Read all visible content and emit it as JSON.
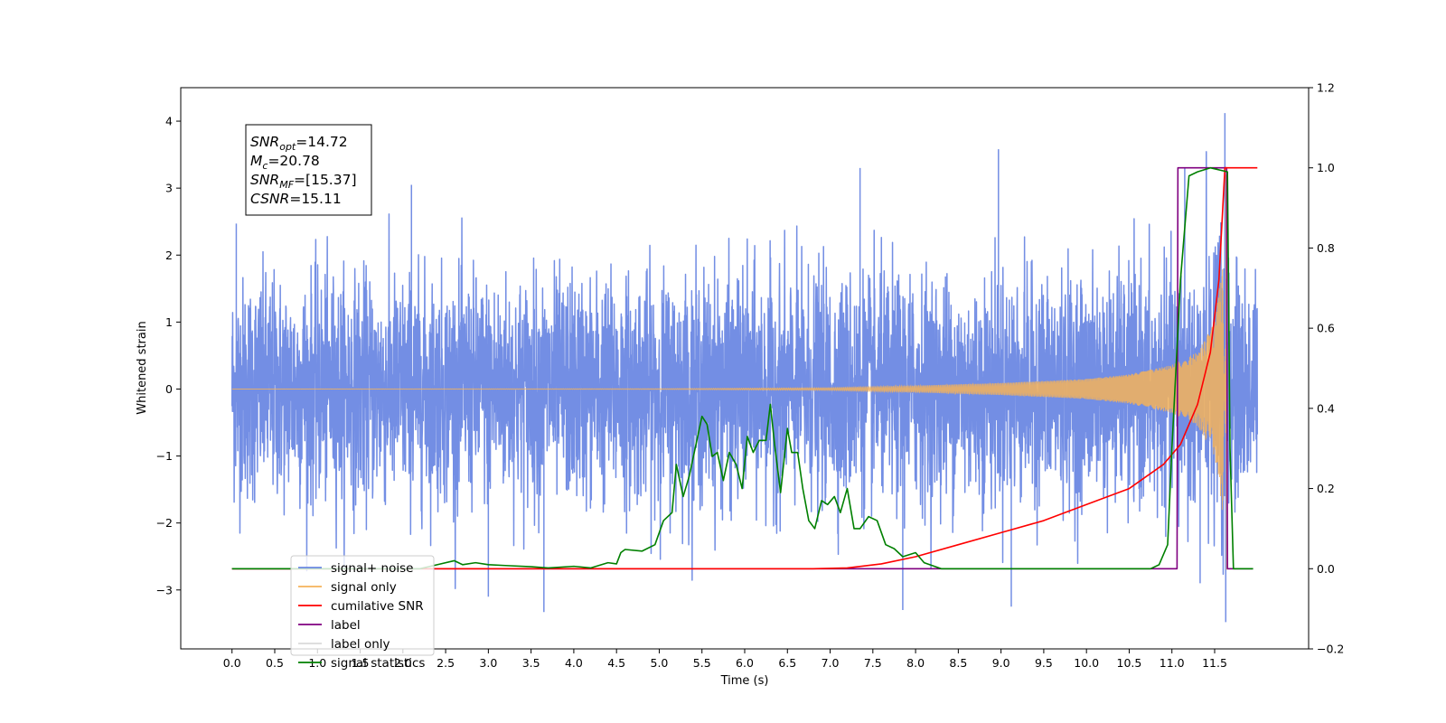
{
  "chart_data": {
    "type": "line",
    "title": "",
    "xlabel": "Time (s)",
    "ylabel": "Whitened strain",
    "xlim": [
      -0.6,
      12.6
    ],
    "ylim": [
      -3.88,
      4.5
    ],
    "y2lim": [
      -0.2,
      1.2
    ],
    "x_ticks": [
      "0.0",
      "0.5",
      "1.0",
      "1.5",
      "2.0",
      "2.5",
      "3.0",
      "3.5",
      "4.0",
      "4.5",
      "5.0",
      "5.5",
      "6.0",
      "6.5",
      "7.0",
      "7.5",
      "8.0",
      "8.5",
      "9.0",
      "9.5",
      "10.0",
      "10.5",
      "11.0",
      "11.5"
    ],
    "y_ticks": [
      "−3",
      "−2",
      "−1",
      "0",
      "1",
      "2",
      "3",
      "4"
    ],
    "y2_ticks": [
      "−0.2",
      "0.0",
      "0.2",
      "0.4",
      "0.6",
      "0.8",
      "1.0",
      "1.2"
    ],
    "grid": false,
    "legend_position": "lower-left",
    "annotation": {
      "lines": [
        {
          "sym": "SNR",
          "sub": "opt",
          "value": "=14.72"
        },
        {
          "sym": "M",
          "sub": "c",
          "value": "=20.78"
        },
        {
          "sym": "SNR",
          "sub": "MF",
          "value": "=[15.37]"
        },
        {
          "sym": "CSNR",
          "sub": "",
          "value": "=15.11"
        }
      ]
    },
    "series": [
      {
        "name": "signal+ noise",
        "axis": "left",
        "color": "#6b88e3",
        "x_range": [
          0.0,
          12.0
        ],
        "envelope": {
          "std": 0.82,
          "typical_peak": 2.5,
          "max": 4.12,
          "min": -3.48
        },
        "notable_peaks": [
          [
            0.05,
            2.47
          ],
          [
            2.1,
            3.05
          ],
          [
            3.0,
            -3.1
          ],
          [
            3.65,
            -3.33
          ],
          [
            7.35,
            3.3
          ],
          [
            7.85,
            -3.3
          ],
          [
            8.97,
            3.58
          ],
          [
            9.12,
            -3.25
          ],
          [
            11.15,
            3.3
          ],
          [
            11.33,
            -2.9
          ],
          [
            11.62,
            4.12
          ],
          [
            11.63,
            -3.48
          ]
        ]
      },
      {
        "name": "signal only",
        "axis": "left",
        "color": "#f5b35a",
        "x": [
          0.0,
          5.0,
          7.0,
          8.0,
          9.0,
          10.0,
          10.5,
          11.0,
          11.3,
          11.5,
          11.6,
          11.65
        ],
        "amplitude": [
          0.0,
          0.005,
          0.02,
          0.05,
          0.09,
          0.15,
          0.22,
          0.36,
          0.55,
          1.0,
          1.9,
          0.0
        ],
        "final_spike": [
          11.63,
          3.2,
          -2.7
        ]
      },
      {
        "name": "cumilative SNR",
        "axis": "right",
        "color": "#ff0000",
        "x": [
          0.0,
          6.8,
          7.2,
          7.6,
          8.0,
          8.5,
          9.0,
          9.5,
          10.0,
          10.5,
          10.9,
          11.1,
          11.3,
          11.45,
          11.55,
          11.62,
          11.65,
          12.0
        ],
        "values": [
          0.0,
          0.0,
          0.002,
          0.012,
          0.03,
          0.06,
          0.09,
          0.12,
          0.16,
          0.2,
          0.26,
          0.31,
          0.41,
          0.54,
          0.72,
          1.0,
          1.0,
          1.0
        ]
      },
      {
        "name": "label",
        "axis": "right",
        "color": "#800080",
        "x": [
          0.0,
          11.06,
          11.07,
          11.64,
          11.65,
          11.95
        ],
        "values": [
          0.0,
          0.0,
          1.0,
          1.0,
          0.0,
          0.0
        ]
      },
      {
        "name": "label only",
        "axis": "right",
        "color": "#d9d9d9",
        "x": [],
        "values": []
      },
      {
        "name": "signal statistics",
        "axis": "right",
        "color": "#008000",
        "x": [
          0.0,
          2.2,
          2.4,
          2.6,
          2.7,
          2.85,
          3.0,
          3.2,
          3.5,
          3.7,
          4.0,
          4.2,
          4.4,
          4.5,
          4.55,
          4.6,
          4.8,
          4.95,
          5.05,
          5.15,
          5.2,
          5.28,
          5.35,
          5.42,
          5.5,
          5.56,
          5.62,
          5.68,
          5.75,
          5.82,
          5.9,
          5.97,
          6.03,
          6.1,
          6.17,
          6.25,
          6.3,
          6.35,
          6.42,
          6.5,
          6.55,
          6.62,
          6.68,
          6.75,
          6.82,
          6.9,
          6.97,
          7.05,
          7.12,
          7.2,
          7.28,
          7.35,
          7.45,
          7.55,
          7.65,
          7.75,
          7.85,
          8.0,
          8.1,
          8.3,
          8.5,
          10.75,
          10.85,
          10.95,
          11.0,
          11.1,
          11.2,
          11.3,
          11.45,
          11.65,
          11.68,
          11.72,
          11.95
        ],
        "values": [
          0.0,
          0.0,
          0.01,
          0.02,
          0.01,
          0.015,
          0.01,
          0.008,
          0.005,
          0.002,
          0.006,
          0.002,
          0.015,
          0.012,
          0.04,
          0.048,
          0.044,
          0.06,
          0.12,
          0.14,
          0.26,
          0.18,
          0.23,
          0.3,
          0.38,
          0.36,
          0.28,
          0.29,
          0.22,
          0.29,
          0.26,
          0.2,
          0.33,
          0.29,
          0.32,
          0.32,
          0.41,
          0.31,
          0.19,
          0.35,
          0.29,
          0.29,
          0.2,
          0.12,
          0.1,
          0.17,
          0.16,
          0.18,
          0.14,
          0.2,
          0.1,
          0.1,
          0.13,
          0.12,
          0.06,
          0.05,
          0.03,
          0.04,
          0.015,
          0.0,
          0.0,
          0.0,
          0.01,
          0.06,
          0.3,
          0.72,
          0.98,
          0.99,
          1.0,
          0.99,
          0.3,
          0.0,
          0.0
        ]
      }
    ]
  }
}
